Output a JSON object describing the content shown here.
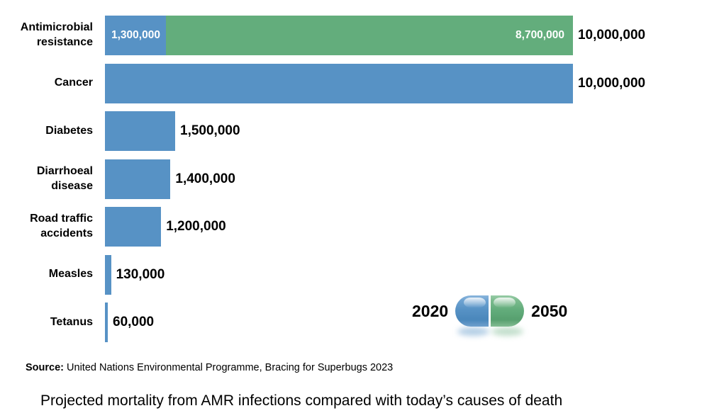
{
  "colors": {
    "bar_2020_blue": "#5792c5",
    "bar_2050_green": "#63ad7c",
    "text": "#000000",
    "inner_value_text": "#ffffff",
    "background": "#ffffff"
  },
  "chart_data": {
    "type": "bar",
    "orientation": "horizontal",
    "title": "Projected mortality from AMR infections compared with today’s causes of death",
    "xlabel": "",
    "ylabel": "",
    "axis_max": 10000000,
    "grid": false,
    "legend_position": "bottom-right",
    "legend": [
      {
        "label": "2020",
        "color": "#5792c5"
      },
      {
        "label": "2050",
        "color": "#63ad7c"
      }
    ],
    "rows": [
      {
        "label": "Antimicrobial resistance",
        "stacked": true,
        "segments": [
          {
            "series": "2020",
            "value": 1300000,
            "value_label": "1,300,000"
          },
          {
            "series": "2050",
            "value": 8700000,
            "value_label": "8,700,000"
          }
        ],
        "total": 10000000,
        "total_label": "10,000,000"
      },
      {
        "label": "Cancer",
        "series": "2020",
        "value": 10000000,
        "value_label": "10,000,000"
      },
      {
        "label": "Diabetes",
        "series": "2020",
        "value": 1500000,
        "value_label": "1,500,000"
      },
      {
        "label": "Diarrhoeal disease",
        "series": "2020",
        "value": 1400000,
        "value_label": "1,400,000"
      },
      {
        "label": "Road traffic accidents",
        "series": "2020",
        "value": 1200000,
        "value_label": "1,200,000"
      },
      {
        "label": "Measles",
        "series": "2020",
        "value": 130000,
        "value_label": "130,000"
      },
      {
        "label": "Tetanus",
        "series": "2020",
        "value": 60000,
        "value_label": "60,000"
      }
    ],
    "source": {
      "label": "Source:",
      "text": " United Nations Environmental Programme, Bracing for Superbugs 2023"
    }
  }
}
